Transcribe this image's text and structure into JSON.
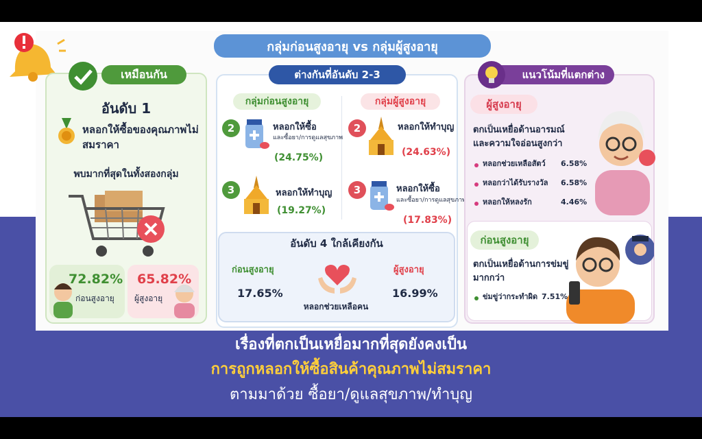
{
  "header": {
    "title": "กลุ่มก่อนสูงอายุ vs กลุ่มผู้สูงอายุ"
  },
  "same": {
    "label": "เหมือนกัน",
    "rank": "อันดับ 1",
    "item": "หลอกให้ซื้อของคุณภาพไม่สมราคา",
    "note": "พบมากที่สุดในทั้งสองกลุ่ม",
    "groups": [
      {
        "value": "72.82%",
        "label": "ก่อนสูงอายุ"
      },
      {
        "value": "65.82%",
        "label": "ผู้สูงอายุ"
      }
    ]
  },
  "diff": {
    "label": "ต่างกันที่อันดับ 2-3",
    "columns": [
      {
        "group": "กลุ่มก่อนสูงอายุ",
        "items": [
          {
            "rank": "2",
            "title": "หลอกให้ซื้อ",
            "sub": "และซื้อยา/การดูแลสุขภาพ",
            "value": "(24.75%)"
          },
          {
            "rank": "3",
            "title": "หลอกให้ทำบุญ",
            "value": "(19.27%)"
          }
        ]
      },
      {
        "group": "กลุ่มผู้สูงอายุ",
        "items": [
          {
            "rank": "2",
            "title": "หลอกให้ทำบุญ",
            "value": "(24.63%)"
          },
          {
            "rank": "3",
            "title": "หลอกให้ซื้อ",
            "sub": "และซื้อยา/การดูแลสุขภาพ",
            "value": "(17.83%)"
          }
        ]
      }
    ],
    "rank4": {
      "title": "อันดับ 4 ใกล้เคียงกัน",
      "item": "หลอกช่วยเหลือคน",
      "groups": [
        {
          "label": "ก่อนสูงอายุ",
          "value": "17.65%"
        },
        {
          "label": "ผู้สูงอายุ",
          "value": "16.99%"
        }
      ]
    }
  },
  "trend": {
    "label": "แนวโน้มที่แตกต่าง",
    "elderly": {
      "group": "ผู้สูงอายุ",
      "desc": "ตกเป็นเหยื่อด้านอารมณ์ และความใจอ่อนสูงกว่า",
      "items": [
        {
          "text": "หลอกช่วยเหลือสัตว์",
          "value": "6.58%"
        },
        {
          "text": "หลอกว่าได้รับรางวัล",
          "value": "6.58%"
        },
        {
          "text": "หลอกให้หลงรัก",
          "value": "4.46%"
        }
      ]
    },
    "pre": {
      "group": "ก่อนสูงอายุ",
      "desc": "ตกเป็นเหยื่อด้านการข่มขู่ มากกว่า",
      "items": [
        {
          "text": "ข่มขู่ว่ากระทำผิด",
          "value": "7.51%"
        }
      ]
    }
  },
  "caption": {
    "lines": [
      "เรื่องที่ตกเป็นเหยื่อมากที่สุดยังคงเป็น",
      "การถูกหลอกให้ซื้อสินค้าคุณภาพไม่สมราคา",
      "ตามมาด้วย ซื้อยา/ดูแลสุขภาพ/ทำบุญ"
    ]
  }
}
